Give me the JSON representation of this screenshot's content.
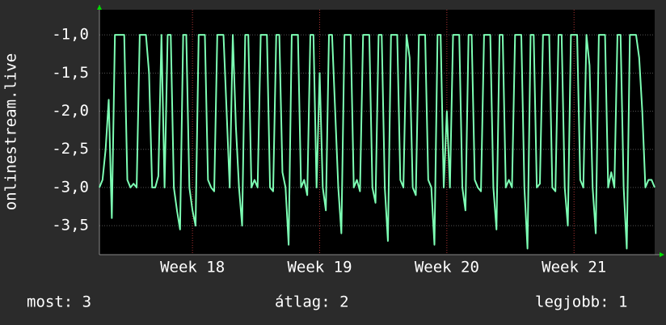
{
  "chart_data": {
    "type": "line",
    "y_label": "onlinestream.live",
    "ylim": [
      -3.88,
      -0.67
    ],
    "yticks": [
      {
        "value": -1.0,
        "label": "-1,0"
      },
      {
        "value": -1.5,
        "label": "-1,5"
      },
      {
        "value": -2.0,
        "label": "-2,0"
      },
      {
        "value": -2.5,
        "label": "-2,5"
      },
      {
        "value": -3.0,
        "label": "-3,0"
      },
      {
        "value": -3.5,
        "label": "-3,5"
      }
    ],
    "xlim": [
      0,
      179
    ],
    "xticks": [
      {
        "value": 30,
        "label": "Week 18"
      },
      {
        "value": 71,
        "label": "Week 19"
      },
      {
        "value": 112,
        "label": "Week 20"
      },
      {
        "value": 153,
        "label": "Week 21"
      }
    ],
    "grid": true,
    "color": "#7dffb4",
    "values": [
      -3,
      -2.9,
      -2.5,
      -1.85,
      -3.4,
      -1.0,
      -1.0,
      -1.0,
      -1.0,
      -2.9,
      -3.0,
      -2.95,
      -3.0,
      -1.0,
      -1.0,
      -1.0,
      -1.5,
      -3.0,
      -3.0,
      -2.85,
      -1.0,
      -3.0,
      -1.0,
      -1.0,
      -3.0,
      -3.3,
      -3.55,
      -1.0,
      -1.0,
      -3.0,
      -3.3,
      -3.5,
      -1.0,
      -1.0,
      -1.0,
      -2.9,
      -3.0,
      -3.05,
      -1.0,
      -1.0,
      -1.0,
      -2.0,
      -3.0,
      -1.0,
      -2.2,
      -3.0,
      -3.5,
      -1.0,
      -1.0,
      -3.0,
      -2.9,
      -3.0,
      -1.0,
      -1.0,
      -1.0,
      -3.0,
      -3.05,
      -1.0,
      -1.0,
      -2.8,
      -3.0,
      -3.75,
      -1.0,
      -1.0,
      -1.0,
      -3.0,
      -2.9,
      -3.1,
      -1.0,
      -1.0,
      -3.0,
      -1.5,
      -3.0,
      -3.3,
      -1.0,
      -1.0,
      -2.0,
      -3.0,
      -3.6,
      -1.0,
      -1.0,
      -1.0,
      -3.0,
      -2.9,
      -3.05,
      -1.0,
      -1.0,
      -1.0,
      -3.0,
      -3.2,
      -1.0,
      -1.0,
      -3.0,
      -3.7,
      -1.0,
      -1.0,
      -1.0,
      -2.9,
      -3.0,
      -1.0,
      -1.3,
      -3.0,
      -3.1,
      -1.0,
      -1.0,
      -1.0,
      -2.9,
      -3.0,
      -3.75,
      -1.0,
      -1.0,
      -3.0,
      -2.0,
      -3.0,
      -1.0,
      -1.0,
      -1.0,
      -3.0,
      -3.3,
      -1.0,
      -1.0,
      -2.9,
      -3.0,
      -3.05,
      -1.0,
      -1.0,
      -1.0,
      -3.0,
      -3.55,
      -1.0,
      -1.0,
      -3.0,
      -2.9,
      -3.0,
      -1.0,
      -1.0,
      -1.0,
      -3.0,
      -3.8,
      -1.0,
      -1.0,
      -3.0,
      -2.95,
      -1.0,
      -1.0,
      -1.0,
      -3.0,
      -3.05,
      -1.0,
      -1.0,
      -3.0,
      -3.5,
      -1.0,
      -1.0,
      -1.0,
      -2.9,
      -3.0,
      -1.0,
      -1.4,
      -3.0,
      -3.6,
      -1.0,
      -1.0,
      -1.0,
      -3.0,
      -2.8,
      -3.0,
      -1.0,
      -1.0,
      -3.0,
      -3.8,
      -1.0,
      -1.0,
      -1.0,
      -1.3,
      -2.0,
      -3.0,
      -2.9,
      -2.9,
      -3.0
    ],
    "stats": [
      "most: 3",
      "átlag: 2",
      "legjobb: 1"
    ]
  }
}
